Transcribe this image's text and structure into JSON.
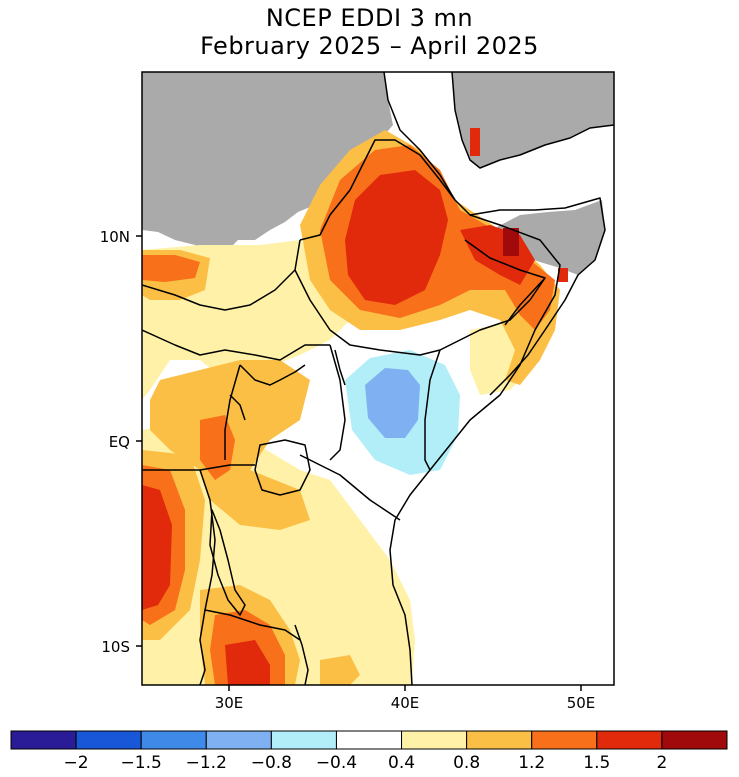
{
  "title": {
    "line1": "NCEP EDDI 3 mn",
    "line2": "February 2025 – April 2025"
  },
  "axes": {
    "lat_labels": [
      "10N",
      "EQ",
      "10S"
    ],
    "lon_labels": [
      "30E",
      "40E",
      "50E"
    ]
  },
  "colorbar": {
    "colors": [
      "#2a1c96",
      "#1857d8",
      "#3f8ae8",
      "#7fb1f2",
      "#b2eef8",
      "#ffffff",
      "#fff2a8",
      "#fbbf45",
      "#f8701a",
      "#e02a0b",
      "#a00a0a"
    ],
    "labels": [
      "−2",
      "−1.5",
      "−1.2",
      "−0.8",
      "−0.4",
      "0.4",
      "0.8",
      "1.2",
      "1.5",
      "2"
    ]
  },
  "map_colors": {
    "no_data": "#aaaaaa",
    "ocean": "#ffffff"
  }
}
